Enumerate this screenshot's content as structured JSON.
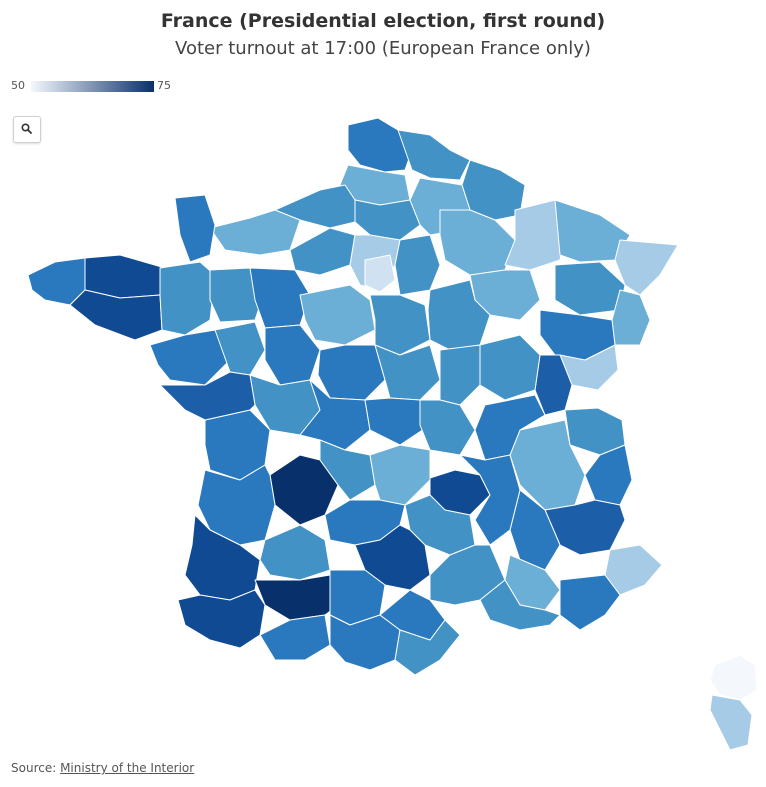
{
  "header": {
    "title": "France (Presidential election, first round)",
    "subtitle": "Voter turnout at 17:00 (European France only)"
  },
  "legend": {
    "min": "50",
    "max": "75",
    "color_low": "#f4f8fd",
    "color_high": "#08306b"
  },
  "controls": {
    "zoom_icon": "search-icon"
  },
  "map": {
    "region": "France",
    "border_color": "#ffffff",
    "color_scale": [
      "#f4f8fd",
      "#d0e1f2",
      "#a6cbe6",
      "#6baed6",
      "#4292c6",
      "#2a78bd",
      "#1c5fa8",
      "#0f4a92",
      "#08306b"
    ]
  },
  "footer": {
    "source_prefix": "Source: ",
    "source_link": "Ministry of the Interior"
  }
}
